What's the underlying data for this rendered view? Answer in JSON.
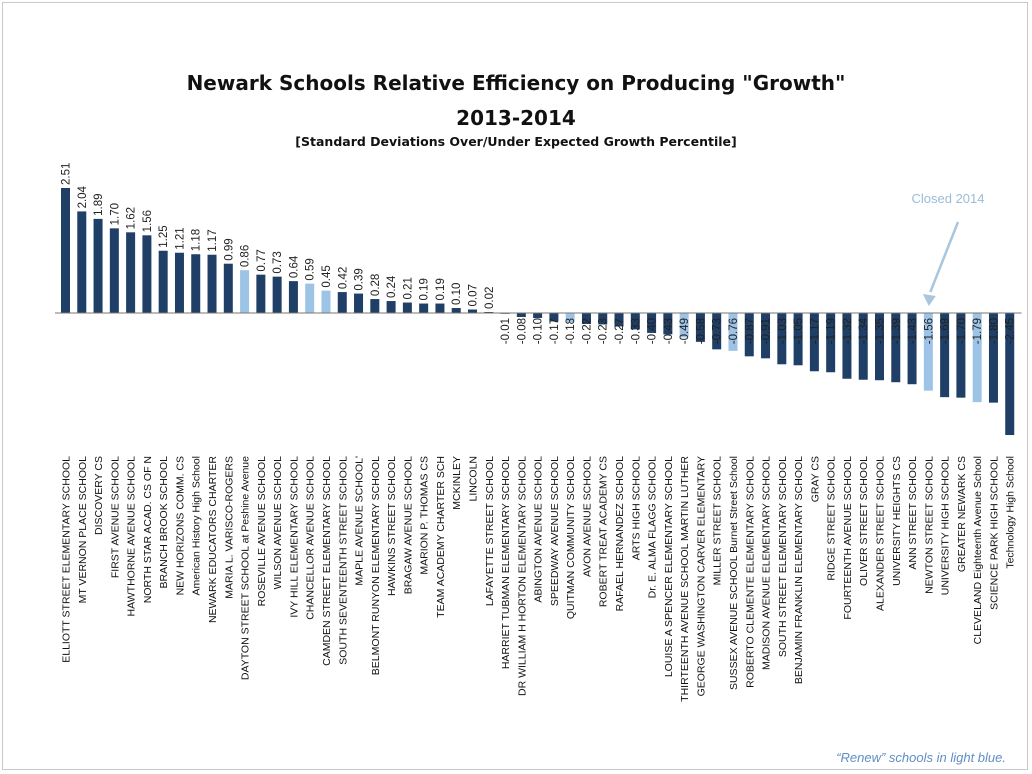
{
  "chart_data": {
    "type": "bar",
    "title": "Newark Schools Relative Efficiency on Producing \"Growth\"",
    "subtitle": "2013-2014",
    "ylabel": "[Standard Deviations Over/Under Expected Growth Percentile]",
    "xlabel": "",
    "ylim": [
      -2.45,
      2.51
    ],
    "grid": false,
    "legend": "none",
    "colors": {
      "standard": "#1f3f66",
      "renew": "#9dc3e6"
    },
    "annotation": "Closed 2014",
    "note": "“Renew” schools in light blue.",
    "categories": [
      "ELLIOTT STREET ELEMENTARY SCHOOL",
      "MT VERNON PLACE SCHOOL",
      "DISCOVERY CS",
      "FIRST AVENUE SCHOOL",
      "HAWTHORNE AVENUE SCHOOL",
      "NORTH STAR ACAD. CS OF N",
      "BRANCH BROOK SCHOOL",
      "NEW HORIZONS COMM. CS",
      "American History High School",
      "NEWARK EDUCATORS CHARTER",
      "MARIA L. VARISCO-ROGERS",
      "DAYTON STREET SCHOOL at Peshine Avenue",
      "ROSEVILLE AVENUE SCHOOL",
      "WILSON AVENUE SCHOOL",
      "IVY HILL ELEMENTARY SCHOOL",
      "CHANCELLOR AVENUE SCHOOL",
      "CAMDEN STREET ELEMENTARY SCHOOL",
      "SOUTH SEVENTEENTH STREET SCHOOL",
      "MAPLE AVENUE SCHOOL'",
      "BELMONT RUNYON ELEMENTARY SCHOOL",
      "HAWKINS STREET SCHOOL",
      "BRAGAW AVENUE SCHOOL",
      "MARION P. THOMAS CS",
      "TEAM ACADEMY CHARTER SCH",
      "MCKINLEY",
      "LINCOLN",
      "LAFAYETTE STREET SCHOOL",
      "HARRIET TUBMAN ELEMENTARY SCHOOL",
      "DR WILLIAM H HORTON ELEMENTARY SCHOOL",
      "ABINGTON AVENUE SCHOOL",
      "SPEEDWAY AVENUE SCHOOL",
      "QUITMAN COMMUNITY SCHOOL",
      "AVON AVENUE SCHOOL",
      "ROBERT TREAT ACADEMY CS",
      "RAFAEL HERNANDEZ SCHOOL",
      "ARTS HIGH SCHOOL",
      "Dr. E. ALMA FLAGG SCHOOL",
      "LOUISE A SPENCER ELEMENTARY SCHOOL",
      "THIRTEENTH AVENUE SCHOOL MARTIN LUTHER",
      "GEORGE WASHINGTON CARVER ELEMENTARY",
      "MILLER STREET SCHOOL",
      "SUSSEX AVENUE SCHOOL Burnet Street School",
      "ROBERTO CLEMENTE ELEMENTARY SCHOOL",
      "MADISON AVENUE ELEMENTARY SCHOOL",
      "SOUTH STREET ELEMENTARY SCHOOL",
      "BENJAMIN FRANKLIN ELEMENTARY SCHOOL",
      "GRAY CS",
      "RIDGE STREET SCHOOL",
      "FOURTEENTH AVENUE SCHOOL",
      "OLIVER STREET SCHOOL",
      "ALEXANDER STREET SCHOOL",
      "UNIVERSITY HEIGHTS CS",
      "ANN STREET SCHOOL",
      "NEWTON STREET SCHOOL",
      "UNIVERSITY HIGH SCHOOL",
      "GREATER NEWARK CS",
      "CLEVELAND Eighteenth Avenue School",
      "SCIENCE PARK HIGH SCHOOL",
      "Technology High School"
    ],
    "labels": [
      "2.51",
      "2.04",
      "1.89",
      "1.70",
      "1.62",
      "1.56",
      "1.25",
      "1.21",
      "1.18",
      "1.17",
      "0.99",
      "0.86",
      "0.77",
      "0.73",
      "0.64",
      "0.59",
      "0.45",
      "0.42",
      "0.39",
      "0.28",
      "0.24",
      "0.21",
      "0.19",
      "0.19",
      "0.10",
      "0.07",
      "0.02",
      "-0.01",
      "-0.08",
      "-0.10",
      "-0.17",
      "-0.18",
      "-0.22",
      "-0.23",
      "-0.27",
      "-0.33",
      "-0.40",
      "-0.43",
      "-0.49",
      "-0.58",
      "-0.73",
      "-0.76",
      "-0.87",
      "-0.91",
      "-1.03",
      "-1.05",
      "-1.17",
      "-1.19",
      "-1.32",
      "-1.34",
      "-1.35",
      "-1.39",
      "-1.43",
      "-1.56",
      "-1.69",
      "-1.70",
      "-1.79",
      "-1.80",
      "-2.45"
    ],
    "values": [
      2.51,
      2.04,
      1.89,
      1.7,
      1.62,
      1.56,
      1.25,
      1.21,
      1.18,
      1.17,
      0.99,
      0.86,
      0.77,
      0.73,
      0.64,
      0.59,
      0.45,
      0.42,
      0.39,
      0.28,
      0.24,
      0.21,
      0.19,
      0.19,
      0.1,
      0.07,
      0.02,
      -0.01,
      -0.08,
      -0.1,
      -0.17,
      -0.18,
      -0.22,
      -0.23,
      -0.27,
      -0.33,
      -0.4,
      -0.43,
      -0.49,
      -0.58,
      -0.73,
      -0.76,
      -0.87,
      -0.91,
      -1.03,
      -1.05,
      -1.17,
      -1.19,
      -1.32,
      -1.34,
      -1.35,
      -1.39,
      -1.43,
      -1.56,
      -1.69,
      -1.7,
      -1.79,
      -1.8,
      -2.45
    ],
    "renew": [
      false,
      false,
      false,
      false,
      false,
      false,
      false,
      false,
      false,
      false,
      false,
      true,
      false,
      false,
      false,
      true,
      true,
      false,
      false,
      false,
      false,
      false,
      false,
      false,
      false,
      false,
      false,
      false,
      false,
      false,
      false,
      true,
      false,
      false,
      false,
      false,
      false,
      false,
      true,
      false,
      false,
      true,
      false,
      false,
      false,
      false,
      false,
      false,
      false,
      false,
      false,
      false,
      false,
      true,
      false,
      false,
      true,
      false,
      false
    ],
    "closed_index": 53
  }
}
